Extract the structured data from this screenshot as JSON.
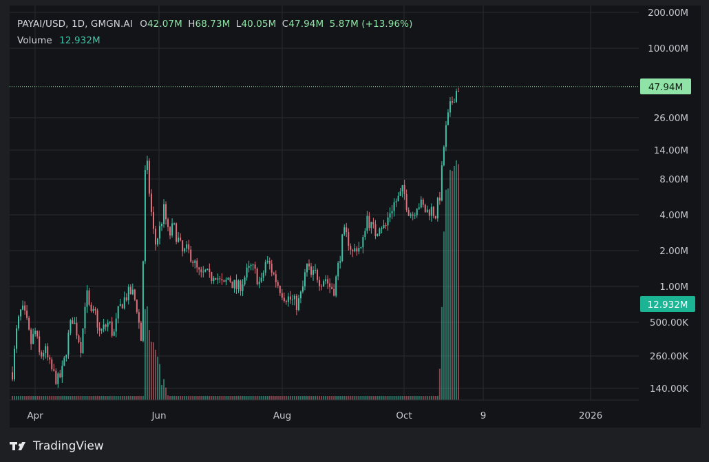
{
  "legend": {
    "symbol_line": "PAYAI/USD, 1D, GMGN.AI",
    "o_label": "O",
    "o_value": "42.07M",
    "h_label": "H",
    "h_value": "68.73M",
    "l_label": "L",
    "l_value": "40.05M",
    "c_label": "C",
    "c_value": "47.94M",
    "change": "5.87M (+13.96%)",
    "volume_label": "Volume",
    "volume_value": "12.932M"
  },
  "chart_data": {
    "type": "candlestick",
    "y_scale": "log",
    "ylim": [
      100000,
      200000000
    ],
    "y_ticks": [
      "200.00M",
      "100.00M",
      "26.00M",
      "14.00M",
      "8.00M",
      "4.00M",
      "2.00M",
      "1.00M",
      "500.00K",
      "260.00K",
      "140.00K"
    ],
    "x_ticks": [
      "Apr",
      "Jun",
      "Aug",
      "Oct",
      "9",
      "2026"
    ],
    "last_price": "47.94M",
    "last_volume": "12.932M",
    "price_path_close": [
      0.19,
      0.45,
      0.65,
      0.52,
      0.33,
      0.42,
      0.25,
      0.3,
      0.22,
      0.18,
      0.16,
      0.2,
      0.35,
      0.55,
      0.42,
      0.3,
      0.95,
      0.55,
      0.6,
      0.4,
      0.45,
      0.5,
      0.38,
      0.6,
      0.75,
      0.85,
      0.9,
      0.7,
      0.35,
      14.0,
      5.0,
      2.2,
      3.0,
      4.5,
      2.6,
      3.2,
      2.5,
      1.9,
      2.0,
      1.8,
      1.4,
      1.2,
      1.3,
      1.15,
      1.35,
      1.1,
      1.0,
      1.2,
      1.05,
      0.95,
      1.1,
      1.3,
      1.45,
      1.25,
      1.0,
      1.6,
      1.5,
      1.2,
      1.0,
      0.85,
      0.8,
      0.75,
      0.7,
      0.9,
      1.5,
      1.2,
      1.3,
      1.1,
      1.2,
      1.0,
      0.95,
      1.6,
      2.8,
      2.5,
      1.9,
      2.2,
      2.0,
      4.0,
      3.2,
      2.8,
      3.5,
      3.0,
      4.2,
      5.0,
      5.5,
      6.5,
      4.5,
      4.0,
      5.0,
      4.8,
      4.2,
      4.5,
      4.0,
      6.0,
      18.0,
      30.0,
      40.0,
      47.94
    ],
    "volume_path": [
      0.02,
      0.02,
      0.02,
      0.03,
      0.02,
      0.02,
      0.02,
      0.02,
      0.02,
      0.02,
      0.02,
      0.02,
      0.02,
      0.03,
      0.02,
      0.02,
      0.04,
      0.03,
      0.02,
      0.02,
      0.02,
      0.02,
      0.02,
      0.02,
      0.02,
      0.02,
      0.02,
      0.02,
      0.02,
      0.9,
      0.35,
      0.25,
      0.2,
      0.15,
      0.12,
      0.1,
      0.09,
      0.08,
      0.08,
      0.07,
      0.07,
      0.06,
      0.06,
      0.06,
      0.06,
      0.05,
      0.05,
      0.05,
      0.05,
      0.05,
      0.05,
      0.05,
      0.05,
      0.05,
      0.05,
      0.05,
      0.05,
      0.05,
      0.05,
      0.05,
      0.05,
      0.05,
      0.05,
      0.05,
      0.05,
      0.05,
      0.05,
      0.05,
      0.05,
      0.05,
      0.05,
      0.05,
      0.07,
      0.06,
      0.05,
      0.05,
      0.05,
      0.12,
      0.08,
      0.06,
      0.07,
      0.06,
      0.08,
      0.1,
      0.09,
      0.1,
      0.07,
      0.06,
      0.07,
      0.07,
      0.06,
      0.07,
      0.06,
      0.2,
      5.0,
      8.0,
      10.0,
      12.932
    ]
  },
  "colors": {
    "background": "#1e1f22",
    "grid": "#2a2b30",
    "up": "#3fc3a8",
    "down": "#e0707c",
    "price_tag": "#8fe3a6",
    "volume_tag": "#1bb596"
  },
  "brand": {
    "name": "TradingView"
  }
}
